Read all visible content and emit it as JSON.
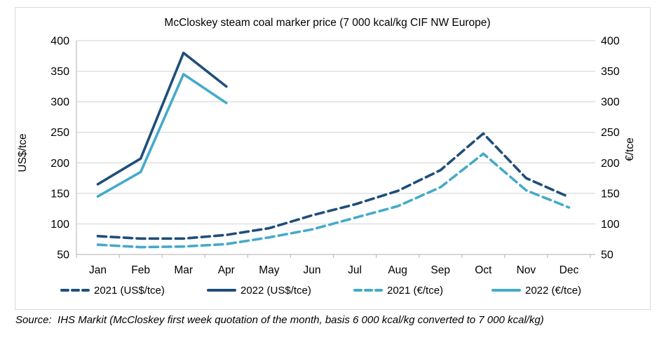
{
  "chart_data": {
    "type": "line",
    "title": "McCloskey steam coal marker price (7 000 kcal/kg CIF NW Europe)",
    "categories": [
      "Jan",
      "Feb",
      "Mar",
      "Apr",
      "May",
      "Jun",
      "Jul",
      "Aug",
      "Sep",
      "Oct",
      "Nov",
      "Dec"
    ],
    "series": [
      {
        "name": "2021 (US$/tce)",
        "style": "dashed",
        "color": "#1F4E79",
        "values": [
          80,
          76,
          76,
          82,
          93,
          114,
          132,
          154,
          188,
          248,
          175,
          144
        ]
      },
      {
        "name": "2022 (US$/tce)",
        "style": "solid",
        "color": "#1F4E79",
        "values": [
          165,
          207,
          380,
          325,
          null,
          null,
          null,
          null,
          null,
          null,
          null,
          null
        ]
      },
      {
        "name": "2021 (€/tce)",
        "style": "dashed",
        "color": "#45AAC9",
        "values": [
          66,
          62,
          63,
          67,
          78,
          91,
          110,
          129,
          160,
          215,
          155,
          127
        ]
      },
      {
        "name": "2022 (€/tce)",
        "style": "solid",
        "color": "#45AAC9",
        "values": [
          145,
          185,
          345,
          298,
          null,
          null,
          null,
          null,
          null,
          null,
          null,
          null
        ]
      }
    ],
    "ylabel_left": "US$/tce",
    "ylabel_right": "€/tce",
    "ylim": [
      50,
      400
    ],
    "ytick_step": 50,
    "grid": true,
    "legend_position": "bottom",
    "colors": {
      "grid": "#D9D9D9",
      "axis": "#BFBFBF",
      "border": "#D9D9D9",
      "text": "#000000"
    }
  },
  "source_note": "Source:  IHS Markit (McCloskey first week quotation of the month, basis 6 000 kcal/kg converted to 7 000 kcal/kg)"
}
